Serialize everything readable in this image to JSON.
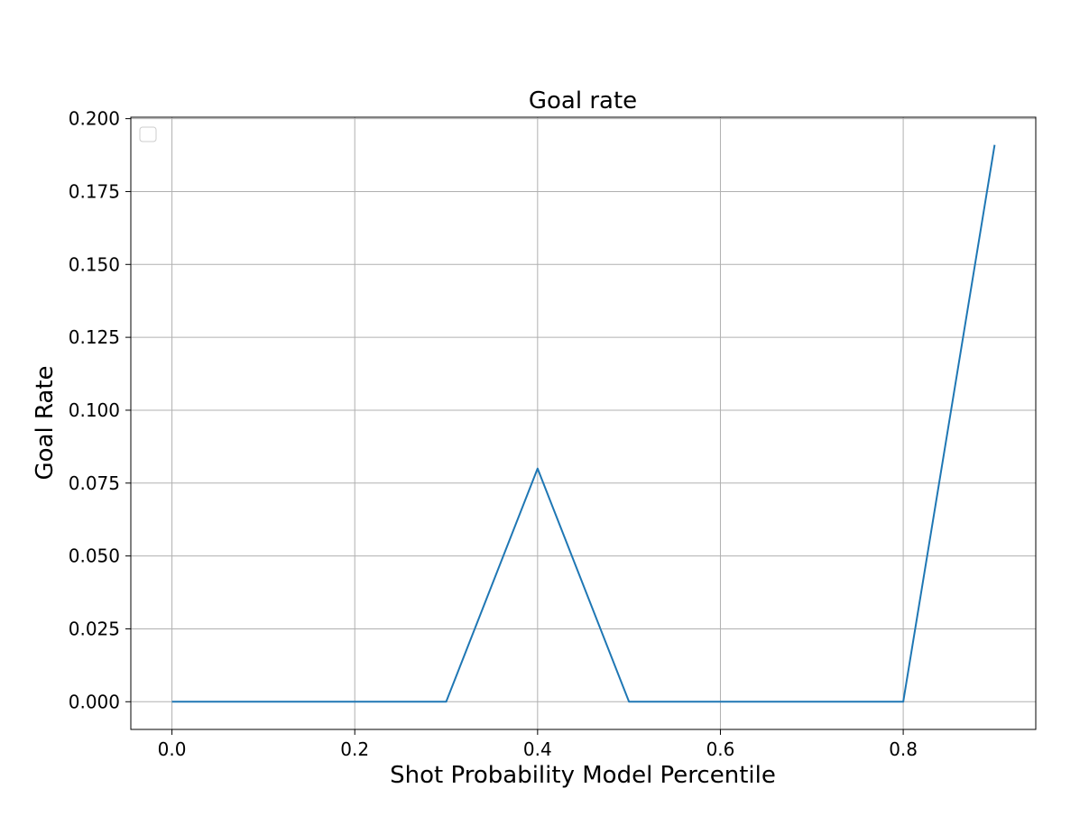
{
  "colors": {
    "line": "#1f77b4",
    "grid": "#b0b0b0",
    "axis": "#000000",
    "background": "#ffffff",
    "legend_border": "#cccccc"
  },
  "chart_data": {
    "type": "line",
    "title": "Goal rate",
    "xlabel": "Shot Probability Model Percentile",
    "ylabel": "Goal Rate",
    "xlim": [
      -0.045,
      0.945
    ],
    "ylim": [
      -0.0095,
      0.2005
    ],
    "xticks": [
      0.0,
      0.2,
      0.4,
      0.6,
      0.8
    ],
    "xtick_labels": [
      "0.0",
      "0.2",
      "0.4",
      "0.6",
      "0.8"
    ],
    "yticks": [
      0.0,
      0.025,
      0.05,
      0.075,
      0.1,
      0.125,
      0.15,
      0.175,
      0.2
    ],
    "ytick_labels": [
      "0.000",
      "0.025",
      "0.050",
      "0.075",
      "0.100",
      "0.125",
      "0.150",
      "0.175",
      "0.200"
    ],
    "grid": true,
    "legend": "upper-left (empty)",
    "series": [
      {
        "name": "",
        "x": [
          0.0,
          0.1,
          0.2,
          0.3,
          0.4,
          0.5,
          0.6,
          0.7,
          0.8,
          0.9
        ],
        "y": [
          0.0,
          0.0,
          0.0,
          0.0,
          0.08,
          0.0,
          0.0,
          0.0,
          0.0,
          0.191
        ]
      }
    ]
  }
}
